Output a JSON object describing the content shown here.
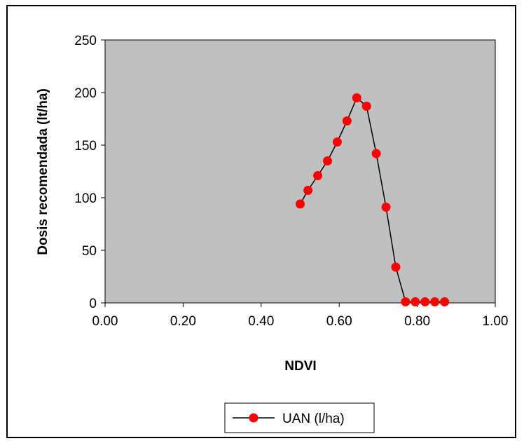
{
  "chart_data": {
    "type": "line",
    "title": "",
    "xlabel": "NDVI",
    "ylabel": "Dosis recomendada (lt/ha)",
    "xlim": [
      0.0,
      1.0
    ],
    "ylim": [
      0,
      250
    ],
    "x_ticks": [
      "0.00",
      "0.20",
      "0.40",
      "0.60",
      "0.80",
      "1.00"
    ],
    "y_ticks": [
      "0",
      "50",
      "100",
      "150",
      "200",
      "250"
    ],
    "grid": false,
    "legend_position": "bottom-center",
    "series": [
      {
        "name": "UAN (l/ha)",
        "color": "#ff0000",
        "line_color": "#000000",
        "marker": "circle",
        "x": [
          0.5,
          0.52,
          0.545,
          0.57,
          0.595,
          0.62,
          0.645,
          0.67,
          0.695,
          0.72,
          0.745,
          0.77,
          0.795,
          0.82,
          0.845,
          0.87
        ],
        "y": [
          94,
          107,
          121,
          135,
          153,
          173,
          195,
          187,
          142,
          91,
          34,
          1,
          1,
          1,
          1,
          1
        ]
      }
    ],
    "plot_background": "#c0c0c0"
  }
}
